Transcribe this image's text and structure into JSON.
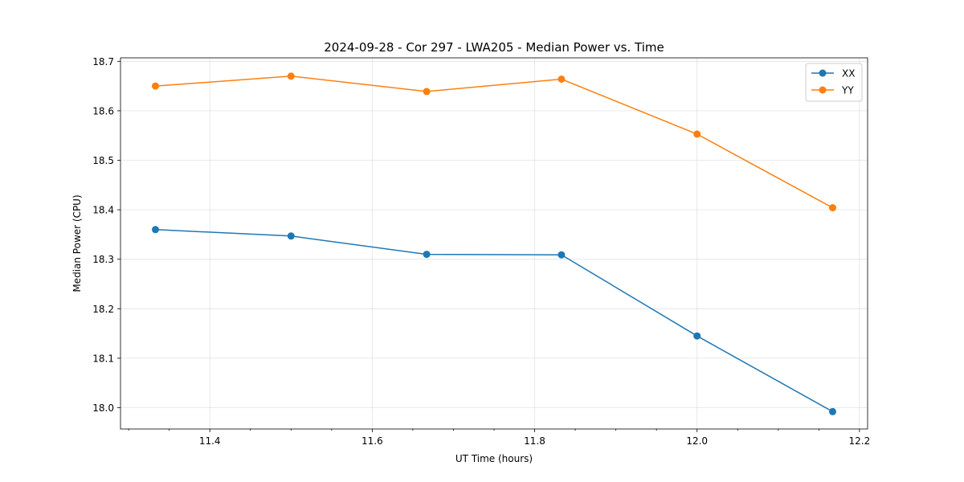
{
  "chart_data": {
    "type": "line",
    "title": "2024-09-28 - Cor 297 - LWA205 - Median Power vs. Time",
    "xlabel": "UT Time (hours)",
    "ylabel": "Median Power (CPU)",
    "xlim": [
      11.29,
      12.21
    ],
    "ylim": [
      17.957,
      18.707
    ],
    "grid": true,
    "legend_position": "top-right",
    "x": [
      11.333,
      11.5,
      11.667,
      11.833,
      12.0,
      12.167
    ],
    "x_ticks": [
      11.4,
      11.6,
      11.8,
      12.0,
      12.2
    ],
    "x_tick_labels": [
      "11.4",
      "11.6",
      "11.8",
      "12.0",
      "12.2"
    ],
    "y_ticks": [
      18.0,
      18.1,
      18.2,
      18.3,
      18.4,
      18.5,
      18.6,
      18.7
    ],
    "y_tick_labels": [
      "18.0",
      "18.1",
      "18.2",
      "18.3",
      "18.4",
      "18.5",
      "18.6",
      "18.7"
    ],
    "series": [
      {
        "name": "XX",
        "color": "#1f77b4",
        "values": [
          18.36,
          18.347,
          18.31,
          18.309,
          18.145,
          17.992
        ]
      },
      {
        "name": "YY",
        "color": "#ff7f0e",
        "values": [
          18.65,
          18.67,
          18.639,
          18.664,
          18.553,
          18.404
        ]
      }
    ]
  }
}
